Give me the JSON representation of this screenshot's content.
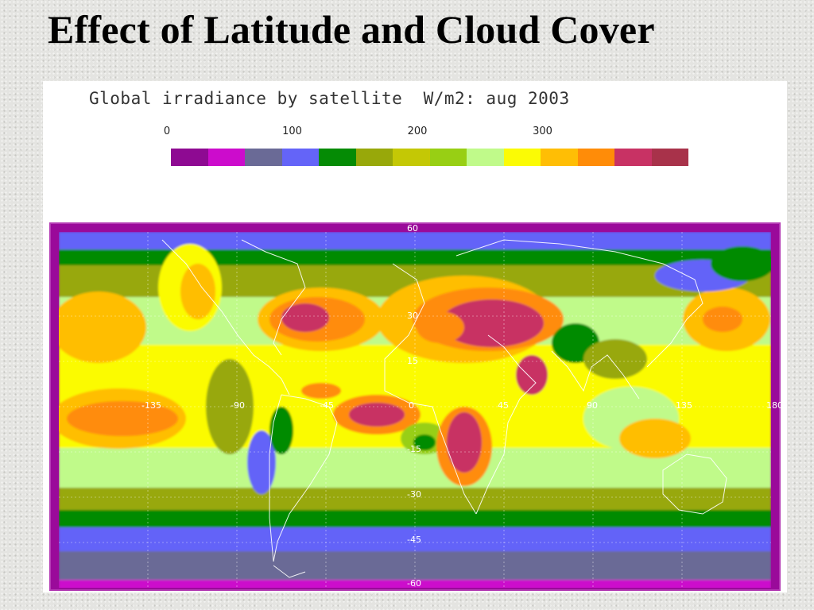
{
  "slide": {
    "title": "Effect of Latitude and Cloud Cover"
  },
  "figure": {
    "title": "Global irradiance by satellite  W/m2: aug 2003",
    "scale_labels": [
      {
        "value": "0",
        "pos": 0
      },
      {
        "value": "100",
        "pos": 100
      },
      {
        "value": "200",
        "pos": 200
      },
      {
        "value": "300",
        "pos": 300
      }
    ],
    "scale_max": 350,
    "colors": [
      "#8e0a92",
      "#cc0ccc",
      "#6a6a96",
      "#6464f8",
      "#058b05",
      "#98a80a",
      "#c4c805",
      "#98cf14",
      "#c0fa8a",
      "#fbfb05",
      "#ffbe05",
      "#ff8c08",
      "#c83264",
      "#a8324a"
    ],
    "lon_labels": [
      "-135",
      "-90",
      "-45",
      "0",
      "45",
      "90",
      "135",
      "180"
    ],
    "lat_labels": [
      "60",
      "30",
      "15",
      "-15",
      "-30",
      "-45",
      "-60"
    ]
  }
}
